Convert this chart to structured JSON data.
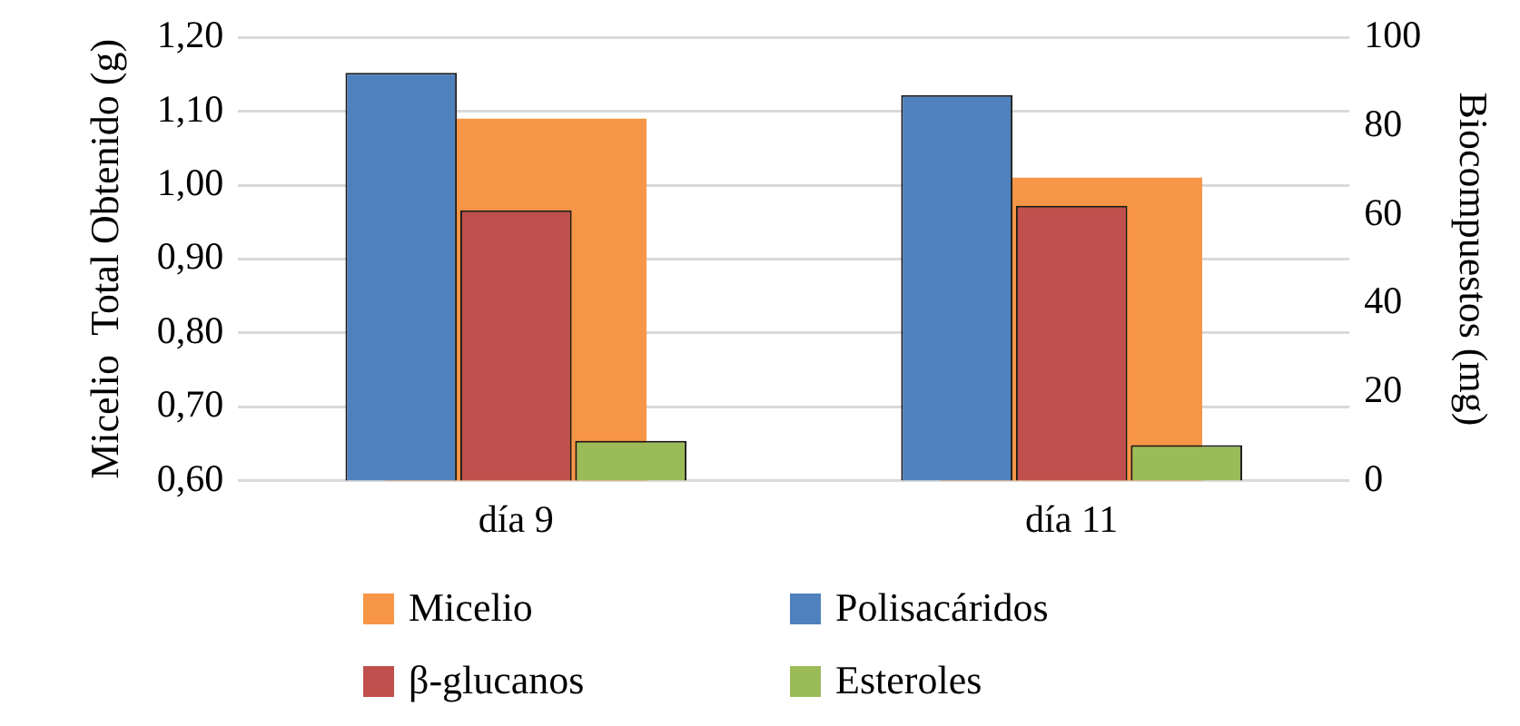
{
  "chart_data": {
    "type": "bar",
    "categories": [
      "día 9",
      "día 11"
    ],
    "series": [
      {
        "name": "Micelio",
        "color": "#f79646",
        "values": [
          1.09,
          1.01
        ],
        "axis": "y"
      },
      {
        "name": "Polisacáridos",
        "color": "#4f81bd",
        "values": [
          92,
          87
        ],
        "axis": "y2"
      },
      {
        "name": "β-glucanos",
        "color": "#c0504d",
        "values": [
          61,
          62
        ],
        "axis": "y2"
      },
      {
        "name": "Esteroles",
        "color": "#9bbb59",
        "values": [
          9,
          8
        ],
        "axis": "y2"
      }
    ],
    "ylabel": "Micelio  Total Obtenido (g)",
    "y2label": "Biocompuestos (mg)",
    "ylim": [
      0.6,
      1.2
    ],
    "yticks": [
      {
        "value": 0.6,
        "label": "0,60"
      },
      {
        "value": 0.7,
        "label": "0,70"
      },
      {
        "value": 0.8,
        "label": "0,80"
      },
      {
        "value": 0.9,
        "label": "0,90"
      },
      {
        "value": 1.0,
        "label": "1,00"
      },
      {
        "value": 1.1,
        "label": "1,10"
      },
      {
        "value": 1.2,
        "label": "1,20"
      }
    ],
    "y2lim": [
      0,
      100
    ],
    "y2ticks": [
      0,
      20,
      40,
      60,
      80,
      100
    ],
    "grid": "y",
    "legend": "bottom"
  }
}
